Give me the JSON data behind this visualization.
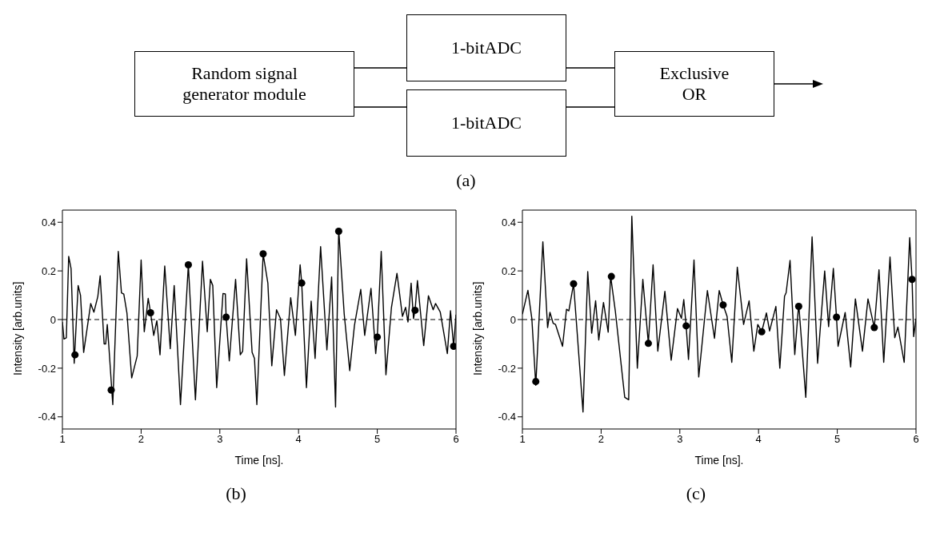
{
  "chart_data": [
    {
      "type": "other",
      "title": "(a)",
      "annotations": [
        "Random signal generator module",
        "1-bitADC",
        "1-bitADC",
        "Exclusive OR"
      ]
    },
    {
      "type": "line",
      "title": "(b)",
      "xlabel": "Time [ns].",
      "ylabel": "Intensity [arb.units]",
      "xlim": [
        1,
        6
      ],
      "xticks": [
        1,
        2,
        3,
        4,
        5,
        6
      ],
      "ylim": [
        -0.45,
        0.45
      ],
      "yticks": [
        -0.4,
        -0.2,
        0,
        0.2,
        0.4
      ],
      "ref_lines": [
        {
          "axis": "y",
          "value": 0,
          "color": "#000000",
          "line_style": "dashed"
        }
      ],
      "series": [
        {
          "type": "line",
          "color": "#000000",
          "marker": "none",
          "line_style": "solid",
          "x": [
            1.0,
            1.02,
            1.05,
            1.08,
            1.11,
            1.15,
            1.2,
            1.23,
            1.27,
            1.36,
            1.4,
            1.45,
            1.48,
            1.53,
            1.55,
            1.57,
            1.59,
            1.64,
            1.71,
            1.75,
            1.78,
            1.82,
            1.88,
            1.95,
            2.0,
            2.04,
            2.09,
            2.12,
            2.16,
            2.2,
            2.24,
            2.3,
            2.37,
            2.42,
            2.5,
            2.6,
            2.69,
            2.78,
            2.84,
            2.88,
            2.91,
            2.96,
            3.04,
            3.07,
            3.08,
            3.12,
            3.2,
            3.26,
            3.29,
            3.34,
            3.41,
            3.44,
            3.47,
            3.55,
            3.61,
            3.66,
            3.72,
            3.77,
            3.82,
            3.9,
            3.96,
            4.02,
            4.04,
            4.1,
            4.16,
            4.21,
            4.28,
            4.36,
            4.42,
            4.47,
            4.51,
            4.58,
            4.65,
            4.71,
            4.79,
            4.84,
            4.92,
            4.98,
            5.0,
            5.05,
            5.11,
            5.18,
            5.25,
            5.32,
            5.36,
            5.39,
            5.43,
            5.46,
            5.48,
            5.51,
            5.59,
            5.65,
            5.71,
            5.74,
            5.8,
            5.89,
            5.93,
            5.97,
            6.0
          ],
          "values": [
            -0.01,
            -0.08,
            -0.075,
            0.26,
            0.21,
            -0.18,
            0.14,
            0.1,
            -0.135,
            0.066,
            0.03,
            0.095,
            0.18,
            -0.1,
            -0.1,
            -0.02,
            -0.11,
            -0.35,
            0.28,
            0.11,
            0.105,
            0.027,
            -0.24,
            -0.15,
            0.245,
            -0.05,
            0.087,
            0.028,
            -0.065,
            -0.005,
            -0.145,
            0.22,
            -0.12,
            0.14,
            -0.35,
            0.225,
            -0.33,
            0.24,
            -0.05,
            0.165,
            0.14,
            -0.28,
            0.107,
            0.105,
            0.01,
            -0.17,
            0.165,
            -0.145,
            -0.13,
            0.25,
            -0.135,
            -0.16,
            -0.35,
            0.27,
            0.15,
            -0.19,
            0.04,
            0.004,
            -0.23,
            0.09,
            -0.065,
            0.225,
            0.15,
            -0.28,
            0.076,
            -0.16,
            0.3,
            -0.125,
            0.175,
            -0.36,
            0.37,
            0.022,
            -0.21,
            -0.024,
            0.124,
            -0.065,
            0.128,
            -0.14,
            -0.072,
            0.28,
            -0.227,
            0.05,
            0.19,
            0.013,
            0.05,
            -0.01,
            0.15,
            0.004,
            0.038,
            0.16,
            -0.107,
            0.098,
            0.04,
            0.066,
            0.031,
            -0.14,
            0.036,
            -0.11,
            0.02
          ]
        },
        {
          "type": "scatter",
          "color": "#000000",
          "marker": "circle",
          "x": [
            1.16,
            1.62,
            2.12,
            2.6,
            3.08,
            3.55,
            4.04,
            4.51,
            5.0,
            5.48,
            5.97
          ],
          "values": [
            -0.145,
            -0.29,
            0.028,
            0.225,
            0.01,
            0.27,
            0.15,
            0.363,
            -0.072,
            0.038,
            -0.11
          ]
        }
      ]
    },
    {
      "type": "line",
      "title": "(c)",
      "xlabel": "Time [ns].",
      "ylabel": "Intensity [arb.units]",
      "xlim": [
        1,
        6
      ],
      "xticks": [
        1,
        2,
        3,
        4,
        5,
        6
      ],
      "ylim": [
        -0.45,
        0.45
      ],
      "yticks": [
        -0.4,
        -0.2,
        0,
        0.2,
        0.4
      ],
      "ref_lines": [
        {
          "axis": "y",
          "value": 0,
          "color": "#000000",
          "line_style": "dashed"
        }
      ],
      "series": [
        {
          "type": "line",
          "color": "#000000",
          "marker": "none",
          "line_style": "solid",
          "x": [
            1.0,
            1.07,
            1.12,
            1.17,
            1.26,
            1.32,
            1.35,
            1.39,
            1.42,
            1.51,
            1.56,
            1.59,
            1.65,
            1.77,
            1.83,
            1.88,
            1.93,
            1.97,
            2.03,
            2.09,
            2.12,
            2.18,
            2.3,
            2.35,
            2.39,
            2.46,
            2.53,
            2.6,
            2.66,
            2.72,
            2.81,
            2.89,
            2.97,
            3.02,
            3.05,
            3.08,
            3.11,
            3.18,
            3.24,
            3.35,
            3.44,
            3.5,
            3.55,
            3.6,
            3.66,
            3.73,
            3.81,
            3.88,
            3.94,
            3.99,
            4.04,
            4.1,
            4.14,
            4.22,
            4.27,
            4.33,
            4.35,
            4.4,
            4.46,
            4.51,
            4.6,
            4.68,
            4.75,
            4.84,
            4.89,
            4.95,
            4.99,
            5.01,
            5.1,
            5.17,
            5.23,
            5.32,
            5.39,
            5.47,
            5.53,
            5.59,
            5.67,
            5.73,
            5.77,
            5.85,
            5.92,
            5.95,
            5.97,
            6.0
          ],
          "values": [
            0.022,
            0.12,
            0.004,
            -0.27,
            0.32,
            -0.033,
            0.03,
            -0.015,
            -0.02,
            -0.11,
            0.042,
            0.036,
            0.147,
            -0.38,
            0.197,
            -0.056,
            0.077,
            -0.084,
            0.07,
            -0.052,
            0.18,
            0.036,
            -0.32,
            -0.33,
            0.425,
            -0.2,
            0.165,
            -0.098,
            0.225,
            -0.13,
            0.116,
            -0.167,
            0.045,
            0.005,
            0.082,
            -0.026,
            -0.164,
            0.245,
            -0.236,
            0.119,
            -0.077,
            0.119,
            0.06,
            0.013,
            -0.176,
            0.215,
            -0.02,
            0.077,
            -0.13,
            -0.02,
            -0.05,
            0.027,
            -0.047,
            0.054,
            -0.2,
            0.096,
            0.11,
            0.243,
            -0.144,
            0.065,
            -0.32,
            0.34,
            -0.18,
            0.2,
            -0.029,
            0.21,
            0.01,
            -0.11,
            0.029,
            -0.195,
            0.085,
            -0.13,
            0.085,
            -0.033,
            0.205,
            -0.176,
            0.257,
            -0.075,
            -0.031,
            -0.176,
            0.337,
            0.165,
            -0.07,
            0.004
          ]
        },
        {
          "type": "scatter",
          "color": "#000000",
          "marker": "circle",
          "x": [
            1.17,
            1.65,
            2.13,
            2.6,
            3.08,
            3.55,
            4.04,
            4.51,
            4.99,
            5.47,
            5.95
          ],
          "values": [
            -0.255,
            0.147,
            0.177,
            -0.098,
            -0.026,
            0.06,
            -0.05,
            0.054,
            0.01,
            -0.033,
            0.165
          ]
        }
      ]
    }
  ]
}
